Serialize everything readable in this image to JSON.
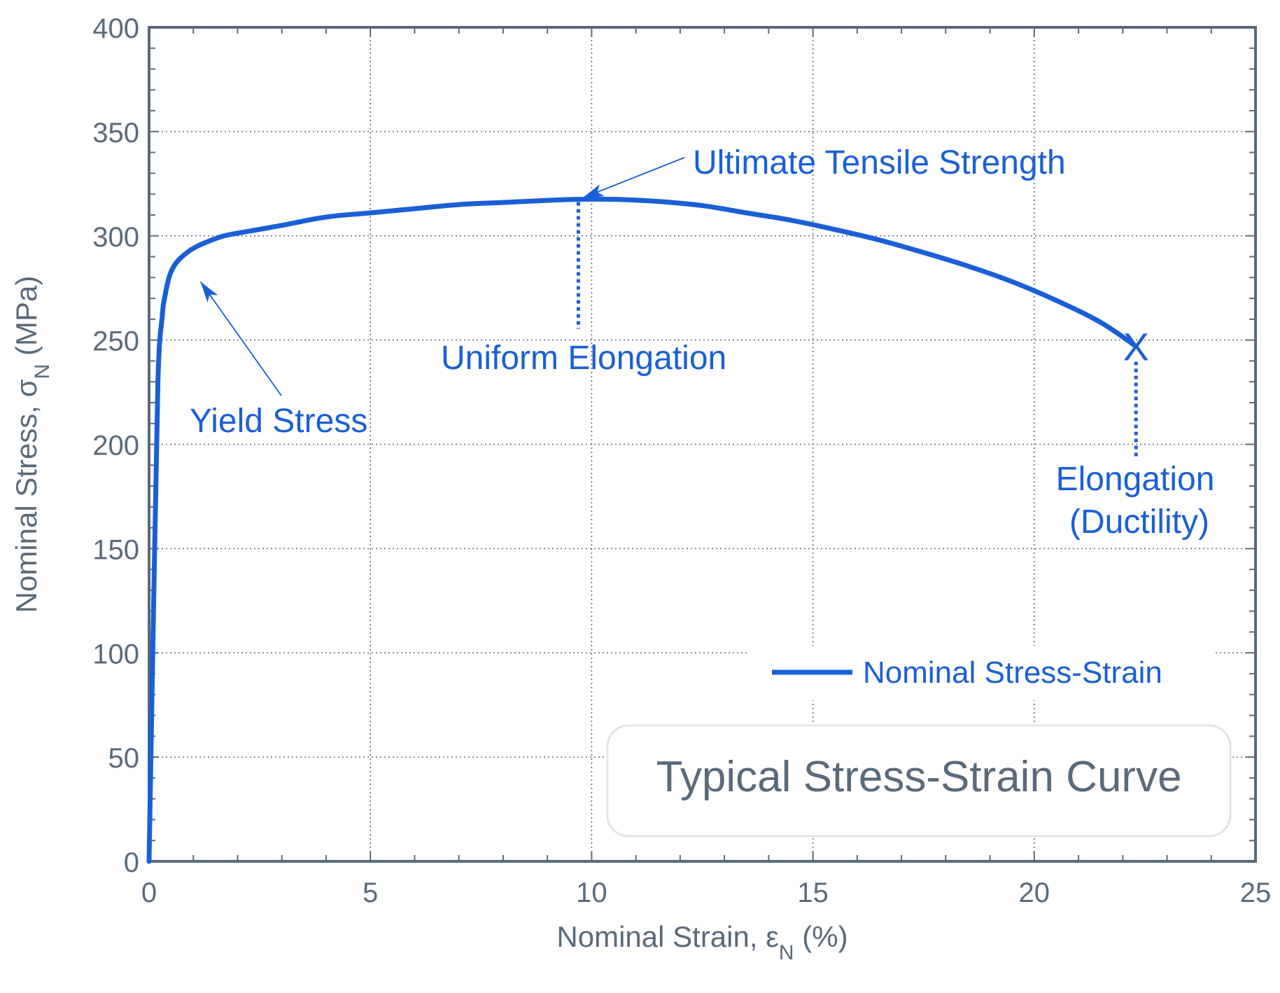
{
  "chart_data": {
    "type": "line",
    "title": "Typical Stress-Strain Curve",
    "xlabel": {
      "main": "Nominal Strain, ",
      "symbol": "ε",
      "subscript": "N",
      "unit": " (%)"
    },
    "ylabel": {
      "main": "Nominal Stress, ",
      "symbol": "σ",
      "subscript": "N",
      "unit": " (MPa)"
    },
    "xlim": [
      0,
      25
    ],
    "ylim": [
      0,
      400
    ],
    "x_ticks": [
      0,
      5,
      10,
      15,
      20,
      25
    ],
    "y_ticks": [
      0,
      50,
      100,
      150,
      200,
      250,
      300,
      350,
      400
    ],
    "x_minor_step": 1,
    "y_minor_step": 10,
    "grid": true,
    "legend_position": "bottom-right",
    "series": [
      {
        "name": "Nominal Stress-Strain",
        "color": "#1a5fd6",
        "x": [
          0,
          0.1,
          0.2,
          0.3,
          0.35,
          0.45,
          0.55,
          0.65,
          0.8,
          1.0,
          1.3,
          1.7,
          2.2,
          3,
          4,
          5,
          6,
          7,
          8,
          9,
          9.7,
          10.5,
          11.5,
          12.5,
          13.5,
          14.5,
          15.5,
          16.5,
          17.5,
          18.5,
          19.5,
          20.5,
          21.5,
          22.3
        ],
        "y": [
          0,
          120,
          230,
          262,
          270,
          280,
          285,
          288,
          291,
          294,
          297,
          300,
          302,
          305,
          309,
          311,
          313,
          315,
          316,
          317,
          317.5,
          317.5,
          316.5,
          314.5,
          311,
          307.5,
          303,
          298,
          292,
          285.5,
          278,
          269,
          258.5,
          247
        ]
      }
    ],
    "annotations": [
      {
        "text": "Ultimate Tensile Strength",
        "target": [
          9.7,
          317.5
        ]
      },
      {
        "text": "Uniform Elongation",
        "x": 9.7
      },
      {
        "text": "Yield Stress",
        "target": [
          1.1,
          280
        ]
      },
      {
        "text": [
          "Elongation",
          "(Ductility)"
        ],
        "x": 22.3,
        "y": 247,
        "marker": "X"
      }
    ],
    "colors": {
      "curve": "#1a5fd6",
      "axis_text": "#5a6a7a",
      "grid": "#5d6d7d",
      "frame": "#5a6a7a"
    }
  }
}
